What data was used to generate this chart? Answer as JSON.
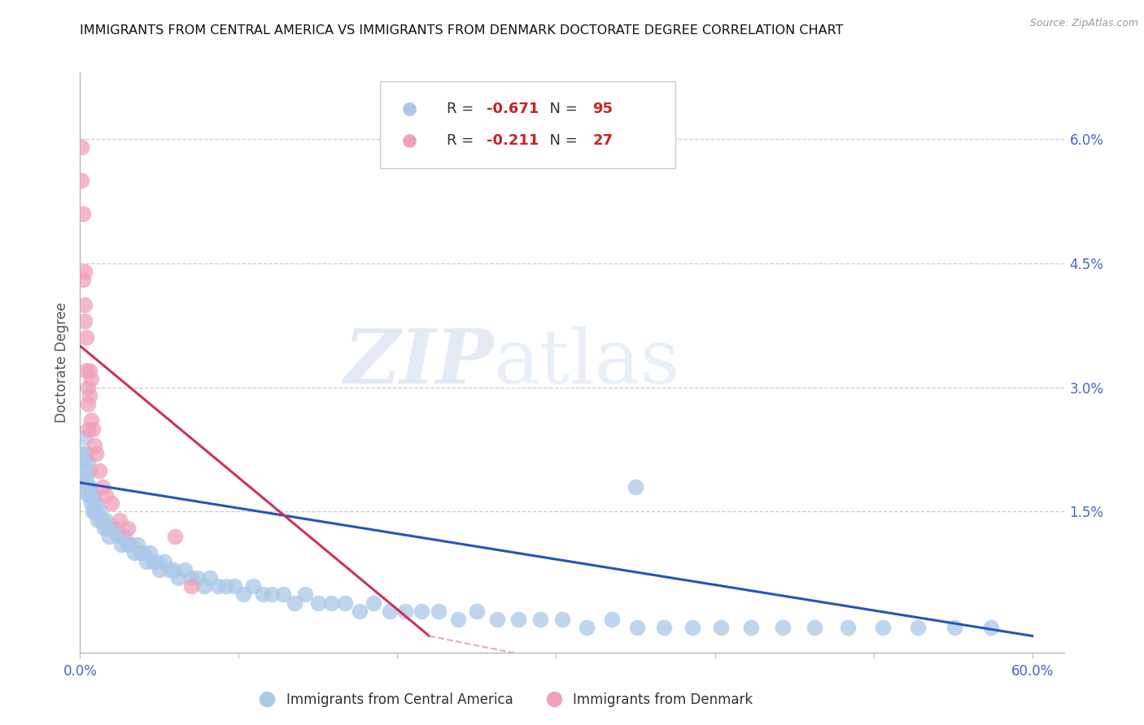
{
  "title": "IMMIGRANTS FROM CENTRAL AMERICA VS IMMIGRANTS FROM DENMARK DOCTORATE DEGREE CORRELATION CHART",
  "source": "Source: ZipAtlas.com",
  "ylabel": "Doctorate Degree",
  "right_yticklabels": [
    "",
    "1.5%",
    "3.0%",
    "4.5%",
    "6.0%"
  ],
  "right_yticks": [
    0.0,
    0.015,
    0.03,
    0.045,
    0.06
  ],
  "xlim": [
    0.0,
    0.62
  ],
  "ylim": [
    -0.002,
    0.068
  ],
  "plot_xlim": [
    0.0,
    0.6
  ],
  "watermark_zip": "ZIP",
  "watermark_atlas": "atlas",
  "legend_r1": "R = ",
  "legend_r1val": "-0.671",
  "legend_n1": "  N = ",
  "legend_n1val": "95",
  "legend_r2": "R = ",
  "legend_r2val": "-0.211",
  "legend_n2": "  N = ",
  "legend_n2val": "27",
  "legend_label1": "Immigrants from Central America",
  "legend_label2": "Immigrants from Denmark",
  "blue_color": "#aac8e8",
  "pink_color": "#f0a0b8",
  "blue_line_color": "#2255bb",
  "pink_line_color": "#cc3355",
  "pink_line_dash_color": "#ddaacc",
  "blue_line_x": [
    0.0,
    0.6
  ],
  "blue_line_y": [
    0.0185,
    0.0
  ],
  "pink_line_x": [
    0.0,
    0.22
  ],
  "pink_line_y": [
    0.035,
    0.0
  ],
  "blue_scatter_x": [
    0.001,
    0.002,
    0.002,
    0.003,
    0.003,
    0.004,
    0.005,
    0.005,
    0.006,
    0.006,
    0.007,
    0.007,
    0.008,
    0.008,
    0.009,
    0.009,
    0.01,
    0.01,
    0.011,
    0.012,
    0.013,
    0.014,
    0.015,
    0.016,
    0.017,
    0.018,
    0.02,
    0.022,
    0.024,
    0.026,
    0.028,
    0.03,
    0.032,
    0.034,
    0.036,
    0.038,
    0.04,
    0.042,
    0.044,
    0.046,
    0.048,
    0.05,
    0.053,
    0.056,
    0.059,
    0.062,
    0.066,
    0.07,
    0.074,
    0.078,
    0.082,
    0.087,
    0.092,
    0.097,
    0.103,
    0.109,
    0.115,
    0.121,
    0.128,
    0.135,
    0.142,
    0.15,
    0.158,
    0.167,
    0.176,
    0.185,
    0.195,
    0.205,
    0.215,
    0.226,
    0.238,
    0.25,
    0.263,
    0.276,
    0.29,
    0.304,
    0.319,
    0.335,
    0.351,
    0.368,
    0.386,
    0.404,
    0.423,
    0.443,
    0.463,
    0.484,
    0.506,
    0.528,
    0.551,
    0.574,
    0.003,
    0.004,
    0.005,
    0.006,
    0.35
  ],
  "blue_scatter_y": [
    0.022,
    0.021,
    0.019,
    0.02,
    0.018,
    0.019,
    0.018,
    0.017,
    0.018,
    0.017,
    0.017,
    0.016,
    0.017,
    0.015,
    0.016,
    0.015,
    0.016,
    0.015,
    0.014,
    0.015,
    0.014,
    0.014,
    0.013,
    0.014,
    0.013,
    0.012,
    0.013,
    0.013,
    0.012,
    0.011,
    0.012,
    0.011,
    0.011,
    0.01,
    0.011,
    0.01,
    0.01,
    0.009,
    0.01,
    0.009,
    0.009,
    0.008,
    0.009,
    0.008,
    0.008,
    0.007,
    0.008,
    0.007,
    0.007,
    0.006,
    0.007,
    0.006,
    0.006,
    0.006,
    0.005,
    0.006,
    0.005,
    0.005,
    0.005,
    0.004,
    0.005,
    0.004,
    0.004,
    0.004,
    0.003,
    0.004,
    0.003,
    0.003,
    0.003,
    0.003,
    0.002,
    0.003,
    0.002,
    0.002,
    0.002,
    0.002,
    0.001,
    0.002,
    0.001,
    0.001,
    0.001,
    0.001,
    0.001,
    0.001,
    0.001,
    0.001,
    0.001,
    0.001,
    0.001,
    0.001,
    0.024,
    0.022,
    0.021,
    0.02,
    0.018
  ],
  "pink_scatter_x": [
    0.001,
    0.001,
    0.002,
    0.002,
    0.003,
    0.003,
    0.004,
    0.004,
    0.005,
    0.005,
    0.006,
    0.006,
    0.007,
    0.007,
    0.008,
    0.009,
    0.01,
    0.012,
    0.014,
    0.016,
    0.02,
    0.025,
    0.03,
    0.06,
    0.07,
    0.003,
    0.005
  ],
  "pink_scatter_y": [
    0.059,
    0.055,
    0.051,
    0.043,
    0.044,
    0.04,
    0.036,
    0.032,
    0.03,
    0.028,
    0.032,
    0.029,
    0.031,
    0.026,
    0.025,
    0.023,
    0.022,
    0.02,
    0.018,
    0.017,
    0.016,
    0.014,
    0.013,
    0.012,
    0.006,
    0.038,
    0.025
  ]
}
